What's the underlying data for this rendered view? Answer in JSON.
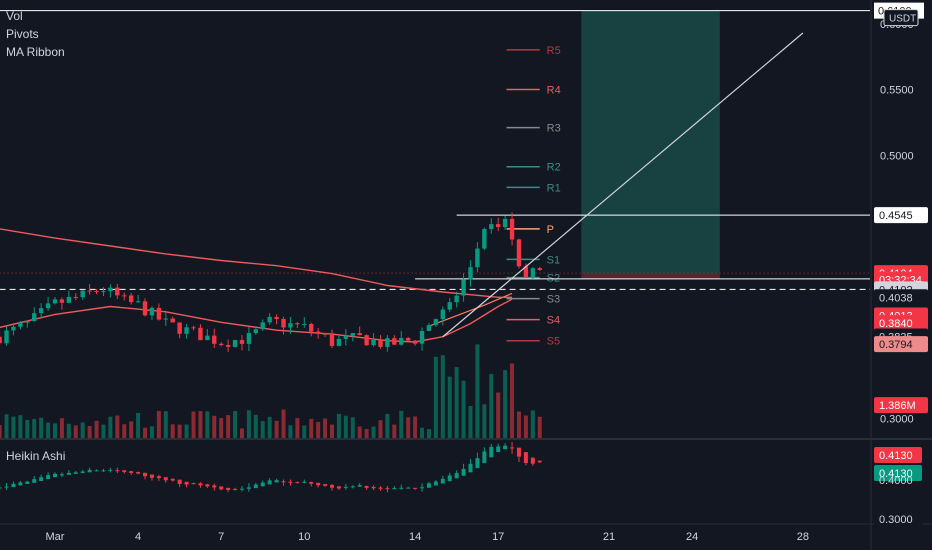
{
  "legend": [
    "Vol",
    "Pivots",
    "MA Ribbon"
  ],
  "subpane_title": "Heikin Ashi",
  "axis_currency": "USDT",
  "top_price_label": "0.6100",
  "price_ticks": [
    "0.6000",
    "0.5500",
    "0.5000",
    "0.3000"
  ],
  "pivots": [
    {
      "name": "R5",
      "price": 0.5802,
      "color": "#b23b43"
    },
    {
      "name": "R4",
      "price": 0.55,
      "color": "#f05a62"
    },
    {
      "name": "R3",
      "price": 0.521,
      "color": "#888888"
    },
    {
      "name": "R2",
      "price": 0.4913,
      "color": "#3d8b87"
    },
    {
      "name": "R1",
      "price": 0.4756,
      "color": "#3d8b87"
    },
    {
      "name": "P",
      "price": 0.444,
      "color": "#ffa56b"
    },
    {
      "name": "S1",
      "price": 0.4208,
      "color": "#3d8b87"
    },
    {
      "name": "S2",
      "price": 0.407,
      "color": "#3d8b87"
    },
    {
      "name": "S3",
      "price": 0.391,
      "color": "#888888"
    },
    {
      "name": "S4",
      "price": 0.375,
      "color": "#f05a62"
    },
    {
      "name": "S5",
      "price": 0.359,
      "color": "#b23b43"
    }
  ],
  "price_labels": [
    {
      "text": "0.4545",
      "price": 0.4545,
      "bg": "#ffffff",
      "fg": "#131722"
    },
    {
      "text": "0.4104",
      "price": 0.4104,
      "bg": "#f23645",
      "fg": "#ffffff"
    },
    {
      "text": "03:32:34",
      "price": 0.4054,
      "bg": "#f23645",
      "fg": "#ffffff"
    },
    {
      "text": "0.4102",
      "price": 0.398,
      "bg": "#d1d4dc",
      "fg": "#131722"
    },
    {
      "text": "0.4038",
      "price": 0.392,
      "bg": "#131722",
      "fg": "#d1d4dc"
    },
    {
      "text": "0.4013",
      "price": 0.3782,
      "bg": "#f23645",
      "fg": "#ffffff"
    },
    {
      "text": "0.3840",
      "price": 0.3724,
      "bg": "#f23645",
      "fg": "#ffffff"
    },
    {
      "text": "0.3835",
      "price": 0.3622,
      "bg": "#131722",
      "fg": "#d1d4dc"
    },
    {
      "text": "0.3794",
      "price": 0.3564,
      "bg": "#ee8a8a",
      "fg": "#131722"
    },
    {
      "text": "1.386M",
      "price": 0.31,
      "bg": "#f23645",
      "fg": "#ffffff"
    }
  ],
  "sub_labels": [
    {
      "text": "0.4130",
      "bg": "#f23645",
      "fg": "#ffffff"
    },
    {
      "text": "0.4130",
      "bg": "#089981",
      "fg": "#ffffff"
    },
    {
      "text": "0.4000",
      "bg": "#131722",
      "fg": "#d1d4dc"
    },
    {
      "text": "0.3000",
      "bg": "#131722",
      "fg": "#d1d4dc"
    }
  ],
  "x_ticks": [
    {
      "label": "Mar",
      "day": 0
    },
    {
      "label": "4",
      "day": 3
    },
    {
      "label": "7",
      "day": 6
    },
    {
      "label": "10",
      "day": 9
    },
    {
      "label": "14",
      "day": 13
    },
    {
      "label": "17",
      "day": 16
    },
    {
      "label": "21",
      "day": 20
    },
    {
      "label": "24",
      "day": 23
    },
    {
      "label": "28",
      "day": 27
    }
  ],
  "colors": {
    "up": "#089981",
    "down": "#f23645",
    "ma": "#f05a5a",
    "bg": "#131722",
    "zone": "#1a4a46"
  },
  "chart_data": {
    "type": "candlestick",
    "x_unit": "day",
    "candle_step_days": 0.25,
    "ylim": [
      0.285,
      0.612
    ],
    "candles": [],
    "ma_slow": [
      [
        -2,
        0.444
      ],
      [
        0,
        0.437
      ],
      [
        2,
        0.431
      ],
      [
        4,
        0.425
      ],
      [
        6,
        0.42
      ],
      [
        8,
        0.416
      ],
      [
        10,
        0.41
      ],
      [
        12,
        0.401
      ],
      [
        14,
        0.396
      ],
      [
        15,
        0.394
      ],
      [
        16,
        0.392
      ],
      [
        16.5,
        0.392
      ]
    ],
    "ma_fast": [
      [
        -2,
        0.369
      ],
      [
        0,
        0.379
      ],
      [
        2,
        0.385
      ],
      [
        4,
        0.381
      ],
      [
        6,
        0.373
      ],
      [
        8,
        0.367
      ],
      [
        10,
        0.364
      ],
      [
        12,
        0.359
      ],
      [
        13,
        0.358
      ],
      [
        14,
        0.362
      ],
      [
        15,
        0.372
      ],
      [
        16,
        0.385
      ],
      [
        16.5,
        0.3905
      ]
    ],
    "ma_mid": [
      [
        13.5,
        0.37
      ],
      [
        14.5,
        0.378
      ],
      [
        15.5,
        0.386
      ],
      [
        16.5,
        0.395
      ]
    ],
    "horizontal_lines": [
      {
        "price": 0.61,
        "style": "solid",
        "from_day": -2
      },
      {
        "price": 0.4545,
        "style": "solid",
        "from_day": 14.5
      },
      {
        "price": 0.406,
        "style": "solid",
        "from_day": 13
      },
      {
        "price": 0.398,
        "style": "dashed",
        "from_day": -2
      },
      {
        "price": 0.4104,
        "style": "dotted",
        "from_day": -2
      }
    ],
    "long_position": {
      "from_day": 19,
      "to_day": 24,
      "entry": 0.4104,
      "target": 0.61,
      "stop": 0.406
    },
    "trend_line": [
      [
        14,
        0.362
      ],
      [
        27,
        0.593
      ]
    ]
  }
}
